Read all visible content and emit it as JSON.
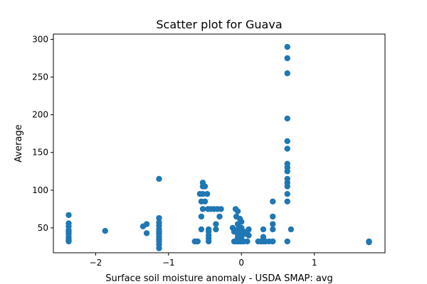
{
  "chart_data": {
    "type": "scatter",
    "title": "Scatter plot for Guava",
    "xlabel": "Surface soil moisture anomaly  - USDA SMAP: avg",
    "ylabel": "Average",
    "xlim": [
      -2.58,
      1.97
    ],
    "ylim": [
      17,
      307
    ],
    "xticks": [
      -2,
      -1,
      0,
      1
    ],
    "xtick_labels": [
      "−2",
      "−1",
      "0",
      "1"
    ],
    "yticks": [
      50,
      100,
      150,
      200,
      250,
      300
    ],
    "ytick_labels": [
      "50",
      "100",
      "150",
      "200",
      "250",
      "300"
    ],
    "grid": false,
    "legend": "none",
    "colors": {
      "points": "#1f77b4"
    },
    "points": [
      [
        -2.37,
        67
      ],
      [
        -2.37,
        56
      ],
      [
        -2.37,
        52
      ],
      [
        -2.37,
        47
      ],
      [
        -2.37,
        45
      ],
      [
        -2.37,
        42
      ],
      [
        -2.37,
        38
      ],
      [
        -2.37,
        35
      ],
      [
        -2.37,
        33
      ],
      [
        -2.37,
        32
      ],
      [
        -1.87,
        46
      ],
      [
        -1.35,
        52
      ],
      [
        -1.3,
        55
      ],
      [
        -1.3,
        43
      ],
      [
        -1.13,
        115
      ],
      [
        -1.13,
        63
      ],
      [
        -1.13,
        57
      ],
      [
        -1.13,
        53
      ],
      [
        -1.13,
        48
      ],
      [
        -1.13,
        45
      ],
      [
        -1.13,
        42
      ],
      [
        -1.13,
        38
      ],
      [
        -1.13,
        35
      ],
      [
        -1.13,
        32
      ],
      [
        -1.13,
        28
      ],
      [
        -1.13,
        23
      ],
      [
        -0.6,
        32
      ],
      [
        -0.62,
        32
      ],
      [
        -0.64,
        32
      ],
      [
        -0.57,
        95
      ],
      [
        -0.55,
        65
      ],
      [
        -0.55,
        48
      ],
      [
        -0.55,
        85
      ],
      [
        -0.53,
        110
      ],
      [
        -0.53,
        105
      ],
      [
        -0.53,
        95
      ],
      [
        -0.53,
        75
      ],
      [
        -0.5,
        105
      ],
      [
        -0.5,
        85
      ],
      [
        -0.47,
        95
      ],
      [
        -0.46,
        75
      ],
      [
        -0.45,
        48
      ],
      [
        -0.45,
        45
      ],
      [
        -0.45,
        40
      ],
      [
        -0.45,
        36
      ],
      [
        -0.45,
        32
      ],
      [
        -0.42,
        75
      ],
      [
        -0.38,
        75
      ],
      [
        -0.35,
        55
      ],
      [
        -0.35,
        48
      ],
      [
        -0.33,
        75
      ],
      [
        -0.3,
        65
      ],
      [
        -0.28,
        75
      ],
      [
        -0.12,
        50
      ],
      [
        -0.1,
        45
      ],
      [
        -0.1,
        32
      ],
      [
        -0.08,
        75
      ],
      [
        -0.07,
        65
      ],
      [
        -0.07,
        32
      ],
      [
        -0.05,
        72
      ],
      [
        -0.05,
        55
      ],
      [
        -0.05,
        48
      ],
      [
        -0.05,
        45
      ],
      [
        -0.05,
        42
      ],
      [
        -0.05,
        38
      ],
      [
        -0.05,
        35
      ],
      [
        -0.05,
        32
      ],
      [
        -0.02,
        62
      ],
      [
        -0.02,
        48
      ],
      [
        -0.02,
        40
      ],
      [
        -0.02,
        32
      ],
      [
        0.0,
        58
      ],
      [
        0.0,
        50
      ],
      [
        0.0,
        45
      ],
      [
        0.0,
        42
      ],
      [
        0.0,
        38
      ],
      [
        0.0,
        35
      ],
      [
        0.0,
        32
      ],
      [
        0.03,
        45
      ],
      [
        0.03,
        32
      ],
      [
        0.06,
        42
      ],
      [
        0.08,
        45
      ],
      [
        0.08,
        32
      ],
      [
        0.1,
        48
      ],
      [
        0.1,
        40
      ],
      [
        0.23,
        32
      ],
      [
        0.27,
        32
      ],
      [
        0.3,
        48
      ],
      [
        0.3,
        38
      ],
      [
        0.3,
        32
      ],
      [
        0.33,
        32
      ],
      [
        0.38,
        32
      ],
      [
        0.43,
        85
      ],
      [
        0.43,
        65
      ],
      [
        0.43,
        55
      ],
      [
        0.43,
        48
      ],
      [
        0.43,
        32
      ],
      [
        0.63,
        290
      ],
      [
        0.63,
        275
      ],
      [
        0.63,
        255
      ],
      [
        0.63,
        195
      ],
      [
        0.63,
        165
      ],
      [
        0.63,
        155
      ],
      [
        0.63,
        135
      ],
      [
        0.63,
        130
      ],
      [
        0.63,
        125
      ],
      [
        0.63,
        115
      ],
      [
        0.63,
        110
      ],
      [
        0.63,
        105
      ],
      [
        0.63,
        95
      ],
      [
        0.63,
        85
      ],
      [
        0.63,
        32
      ],
      [
        0.68,
        48
      ],
      [
        1.75,
        32
      ],
      [
        1.75,
        31
      ]
    ]
  }
}
